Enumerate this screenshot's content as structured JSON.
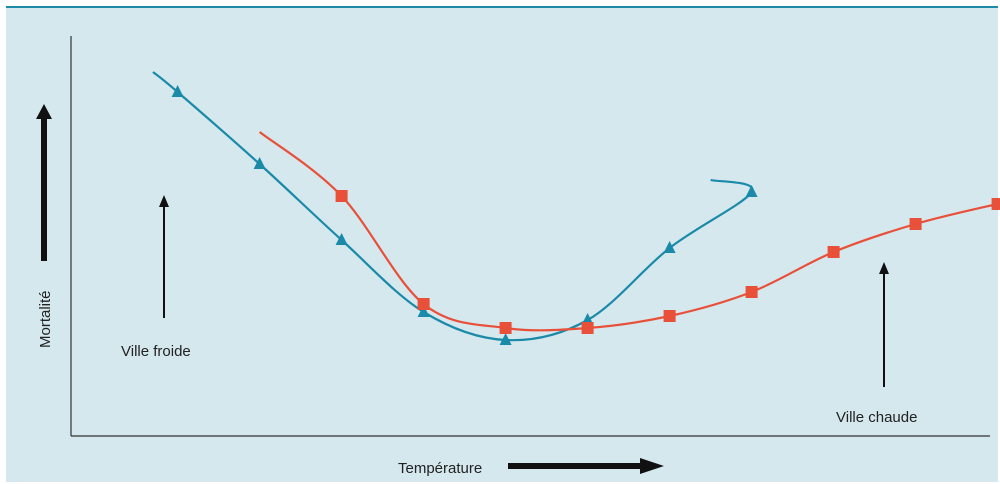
{
  "chart_data": {
    "type": "line",
    "title": "",
    "xlabel": "Température",
    "ylabel": "Mortalité",
    "axes_ticks": "none",
    "grid": false,
    "background": "#d5e8ee",
    "series": [
      {
        "name": "Ville froide",
        "color": "#1a8aa8",
        "marker": "triangle",
        "curve_start": [
          1.0,
          9.1
        ],
        "curve_end": [
          7.8,
          6.4
        ],
        "x": [
          1.3,
          2.3,
          3.3,
          4.3,
          5.3,
          6.3,
          7.3,
          8.3
        ],
        "y": [
          8.6,
          6.8,
          4.9,
          3.1,
          2.4,
          2.9,
          4.7,
          6.1
        ],
        "label": "Ville froide"
      },
      {
        "name": "Ville chaude",
        "color": "#e8503a",
        "marker": "square",
        "curve_start": [
          2.3,
          7.6
        ],
        "curve_end": [
          11.8,
          6.0
        ],
        "x": [
          3.3,
          4.3,
          5.3,
          6.3,
          7.3,
          8.3,
          9.3,
          10.3,
          11.3
        ],
        "y": [
          6.0,
          3.3,
          2.7,
          2.7,
          3.0,
          3.6,
          4.6,
          5.3,
          5.8
        ],
        "label": "Ville chaude"
      }
    ],
    "xlim": [
      0,
      12
    ],
    "ylim": [
      0,
      10
    ]
  }
}
